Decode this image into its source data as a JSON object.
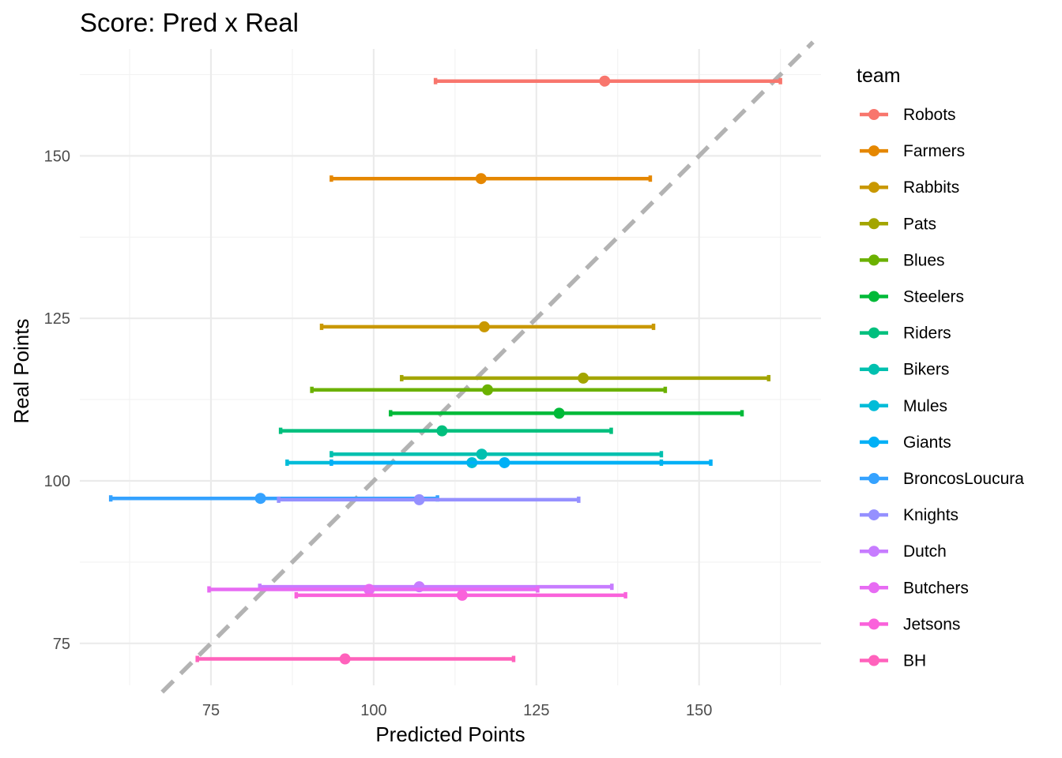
{
  "chart_data": {
    "type": "scatter",
    "title": "Score: Pred x Real",
    "xlabel": "Predicted Points",
    "ylabel": "Real Points",
    "xlim": [
      57.5,
      167.5
    ],
    "ylim": [
      67.5,
      167.5
    ],
    "x_ticks": [
      75,
      100,
      125,
      150
    ],
    "y_ticks": [
      75,
      100,
      125,
      150
    ],
    "grid": true,
    "reference_line": {
      "style": "dashed",
      "slope": 1,
      "intercept": 0,
      "color": "#b3b3b3"
    },
    "legend": {
      "title": "team",
      "position": "right"
    },
    "series": [
      {
        "name": "Robots",
        "color": "#F8766D",
        "x": 135.5,
        "y": 161.5,
        "xmin": 109.5,
        "xmax": 162.5
      },
      {
        "name": "Farmers",
        "color": "#E58700",
        "x": 116.5,
        "y": 146.5,
        "xmin": 93.5,
        "xmax": 142.5
      },
      {
        "name": "Rabbits",
        "color": "#C99800",
        "x": 117.0,
        "y": 123.7,
        "xmin": 92.0,
        "xmax": 143.0
      },
      {
        "name": "Pats",
        "color": "#A3A500",
        "x": 132.2,
        "y": 115.8,
        "xmin": 104.3,
        "xmax": 160.7
      },
      {
        "name": "Blues",
        "color": "#6BB100",
        "x": 117.5,
        "y": 114.0,
        "xmin": 90.5,
        "xmax": 144.8
      },
      {
        "name": "Steelers",
        "color": "#00BA38",
        "x": 128.5,
        "y": 110.4,
        "xmin": 102.6,
        "xmax": 156.6
      },
      {
        "name": "Riders",
        "color": "#00BF7D",
        "x": 110.5,
        "y": 107.7,
        "xmin": 85.7,
        "xmax": 136.5
      },
      {
        "name": "Bikers",
        "color": "#00C0AF",
        "x": 116.6,
        "y": 104.1,
        "xmin": 93.5,
        "xmax": 144.2
      },
      {
        "name": "Mules",
        "color": "#00BCD8",
        "x": 115.1,
        "y": 102.8,
        "xmin": 86.7,
        "xmax": 144.2
      },
      {
        "name": "Giants",
        "color": "#00B0F6",
        "x": 120.1,
        "y": 102.8,
        "xmin": 93.5,
        "xmax": 151.8
      },
      {
        "name": "BroncosLoucura",
        "color": "#35A2FF",
        "x": 82.6,
        "y": 97.3,
        "xmin": 59.6,
        "xmax": 109.8
      },
      {
        "name": "Knights",
        "color": "#9590FF",
        "x": 107.0,
        "y": 97.1,
        "xmin": 85.4,
        "xmax": 131.5
      },
      {
        "name": "Dutch",
        "color": "#C77CFF",
        "x": 107.0,
        "y": 83.7,
        "xmin": 82.5,
        "xmax": 136.6
      },
      {
        "name": "Butchers",
        "color": "#E76BF3",
        "x": 99.3,
        "y": 83.3,
        "xmin": 74.7,
        "xmax": 125.2
      },
      {
        "name": "Jetsons",
        "color": "#FA62DB",
        "x": 113.6,
        "y": 82.4,
        "xmin": 88.1,
        "xmax": 138.7
      },
      {
        "name": "BH",
        "color": "#FF62BC",
        "x": 95.6,
        "y": 72.6,
        "xmin": 72.9,
        "xmax": 121.5
      }
    ]
  }
}
